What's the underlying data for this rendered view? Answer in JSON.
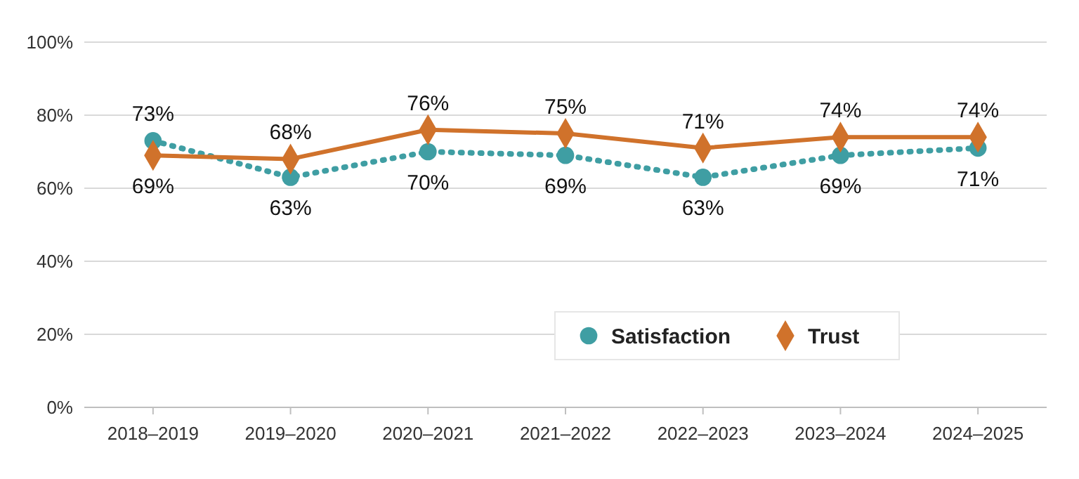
{
  "chart_data": {
    "type": "line",
    "categories": [
      "2018–2019",
      "2019–2020",
      "2020–2021",
      "2021–2022",
      "2022–2023",
      "2023–2024",
      "2024–2025"
    ],
    "series": [
      {
        "name": "Satisfaction",
        "color": "#3f9ea3",
        "values": [
          73,
          63,
          70,
          69,
          63,
          69,
          71
        ],
        "marker": "circle",
        "line_style": "dotted",
        "value_labels": [
          "73%",
          "63%",
          "70%",
          "69%",
          "63%",
          "69%",
          "71%"
        ]
      },
      {
        "name": "Trust",
        "color": "#d0722b",
        "values": [
          69,
          68,
          76,
          75,
          71,
          74,
          74
        ],
        "marker": "diamond",
        "line_style": "solid",
        "value_labels": [
          "69%",
          "68%",
          "76%",
          "75%",
          "71%",
          "74%",
          "74%"
        ]
      }
    ],
    "ylim": [
      0,
      100
    ],
    "yticks": [
      {
        "value": 0,
        "label": "0%"
      },
      {
        "value": 20,
        "label": "20%"
      },
      {
        "value": 40,
        "label": "40%"
      },
      {
        "value": 60,
        "label": "60%"
      },
      {
        "value": 80,
        "label": "80%"
      },
      {
        "value": 100,
        "label": "100%"
      }
    ],
    "grid": "y",
    "legend": "bottom right"
  }
}
